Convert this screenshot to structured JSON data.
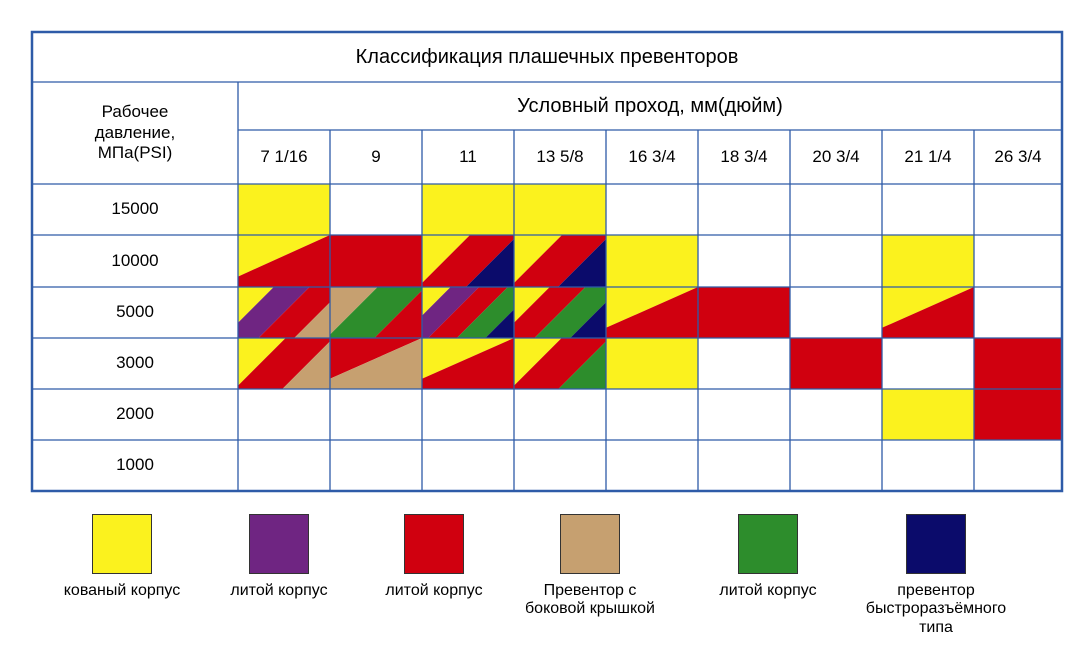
{
  "title": "Классификация плашечных превенторов",
  "pressure_header": "Рабочее давление, МПа(PSI)",
  "bore_header": "Условный проход, мм(дюйм)",
  "columns": [
    "7 1/16",
    "9",
    "11",
    "13 5/8",
    "16 3/4",
    "18 3/4",
    "20 3/4",
    "21 1/4",
    "26 3/4"
  ],
  "rows": [
    "15000",
    "10000",
    "5000",
    "3000",
    "2000",
    "1000"
  ],
  "colors": {
    "Y": "#fbf21e",
    "P": "#6f2582",
    "R": "#d0000f",
    "T": "#c6a070",
    "G": "#2d8d2c",
    "N": "#0b0b6b",
    "grid": "#2e5ba8"
  },
  "cells": [
    [
      "Y",
      "",
      "Y",
      "Y",
      "",
      "",
      "",
      "",
      ""
    ],
    [
      "Y/R",
      "R",
      "Y/R/N",
      "Y/R/N",
      "Y",
      "",
      "",
      "Y",
      ""
    ],
    [
      "Y/P/R/T",
      "T/G/R",
      "Y/P/R/G/N",
      "Y/R/G/N",
      "Y/R",
      "R",
      "",
      "Y/R",
      ""
    ],
    [
      "Y/R/T",
      "R/T",
      "Y/R",
      "Y/R/G",
      "Y",
      "",
      "R",
      "",
      "R"
    ],
    [
      "",
      "",
      "",
      "",
      "",
      "",
      "",
      "Y",
      "R"
    ],
    [
      "",
      "",
      "",
      "",
      "",
      "",
      "",
      "",
      ""
    ]
  ],
  "legend": [
    {
      "color": "Y",
      "label": "кованый корпус"
    },
    {
      "color": "P",
      "label": "литой корпус"
    },
    {
      "color": "R",
      "label": "литой корпус"
    },
    {
      "color": "T",
      "label": "Превентор с боковой крышкой"
    },
    {
      "color": "G",
      "label": "литой корпус"
    },
    {
      "color": "N",
      "label": "превентор быстроразъёмного типа"
    }
  ]
}
